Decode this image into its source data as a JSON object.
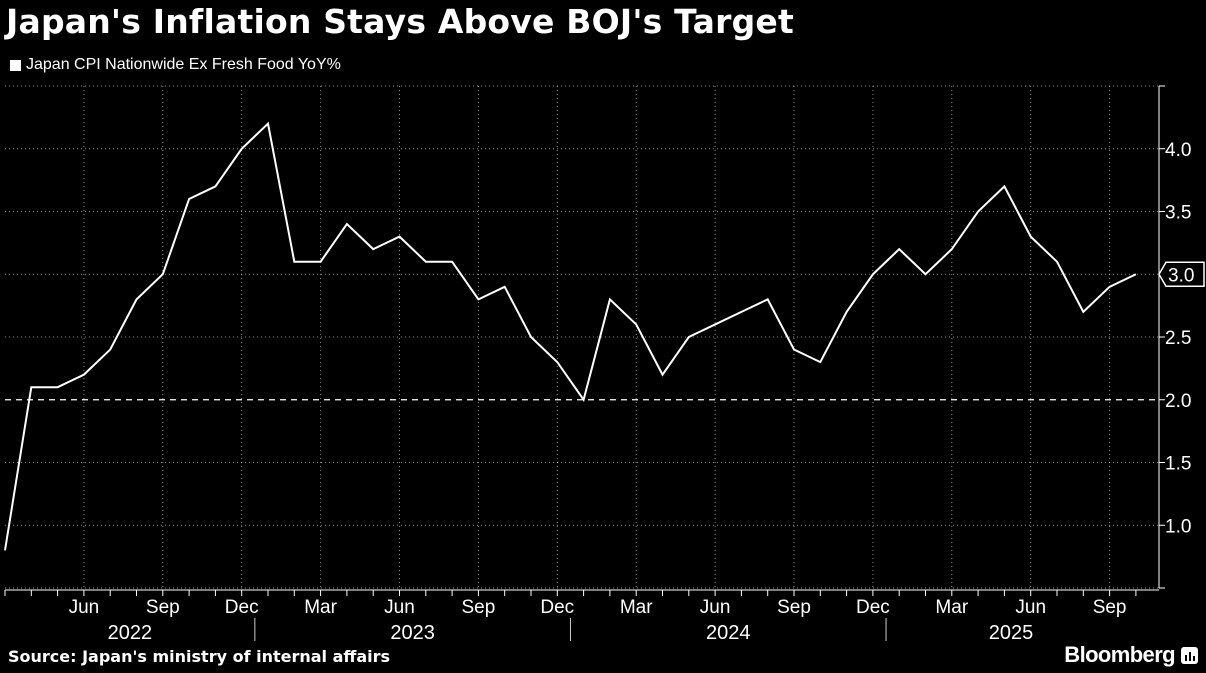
{
  "header": {
    "title": "Japan's Inflation Stays Above BOJ's Target"
  },
  "footer": {
    "source": "Source: Japan's ministry of internal affairs",
    "brand": "Bloomberg"
  },
  "colors": {
    "background": "#000000",
    "line": "#ffffff",
    "grid": "#ffffff"
  },
  "chart_data": {
    "type": "line",
    "title": "Japan's Inflation Stays Above BOJ's Target",
    "xlabel": "",
    "ylabel": "",
    "ylim": [
      0.5,
      4.5
    ],
    "yticks": [
      "1.0",
      "1.5",
      "2.0",
      "2.5",
      "3.0",
      "3.5",
      "4.0"
    ],
    "reference_line": {
      "value": 2.0,
      "style": "dashed"
    },
    "last_value_label": "3.0",
    "x_month_labels": [
      "Jun",
      "Sep",
      "Dec",
      "Mar",
      "Jun",
      "Sep",
      "Dec",
      "Mar",
      "Jun",
      "Sep",
      "Dec",
      "Mar",
      "Jun",
      "Sep"
    ],
    "x_year_labels": [
      "2022",
      "2023",
      "2024",
      "2025"
    ],
    "series": [
      {
        "name": "Japan CPI Nationwide Ex Fresh Food YoY%",
        "start": "2022-03",
        "values": [
          0.8,
          2.1,
          2.1,
          2.2,
          2.4,
          2.8,
          3.0,
          3.6,
          3.7,
          4.0,
          4.2,
          3.1,
          3.1,
          3.4,
          3.2,
          3.3,
          3.1,
          3.1,
          2.8,
          2.9,
          2.5,
          2.3,
          2.0,
          2.8,
          2.6,
          2.2,
          2.5,
          2.6,
          2.7,
          2.8,
          2.4,
          2.3,
          2.7,
          3.0,
          3.2,
          3.0,
          3.2,
          3.5,
          3.7,
          3.3,
          3.1,
          2.7,
          2.9,
          3.0
        ]
      }
    ]
  }
}
